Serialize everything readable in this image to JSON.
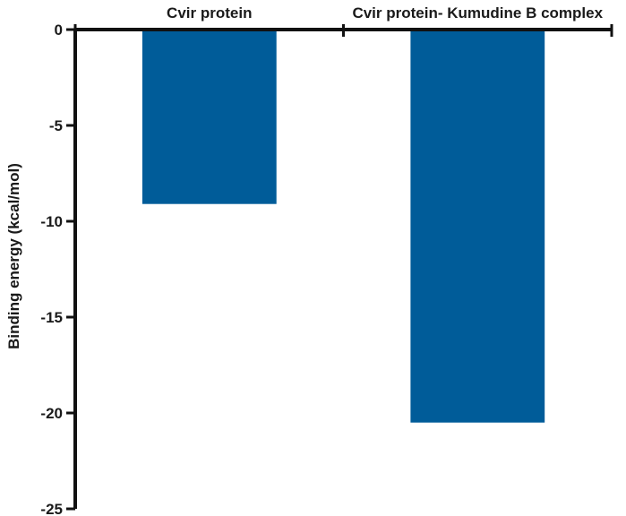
{
  "chart_data": {
    "type": "bar",
    "categories": [
      "Cvir protein",
      "Cvir protein- Kumudine B complex"
    ],
    "series": [
      {
        "values": [
          -9.1,
          -20.5
        ],
        "color": "#005c99"
      }
    ],
    "title": "",
    "xlabel": "",
    "ylabel": "Binding energy (kcal/mol)",
    "ylim": [
      -25,
      0
    ],
    "yticks": [
      0,
      -5,
      -10,
      -15,
      -20,
      -25
    ],
    "grid": false,
    "category_labels_position": "top"
  }
}
